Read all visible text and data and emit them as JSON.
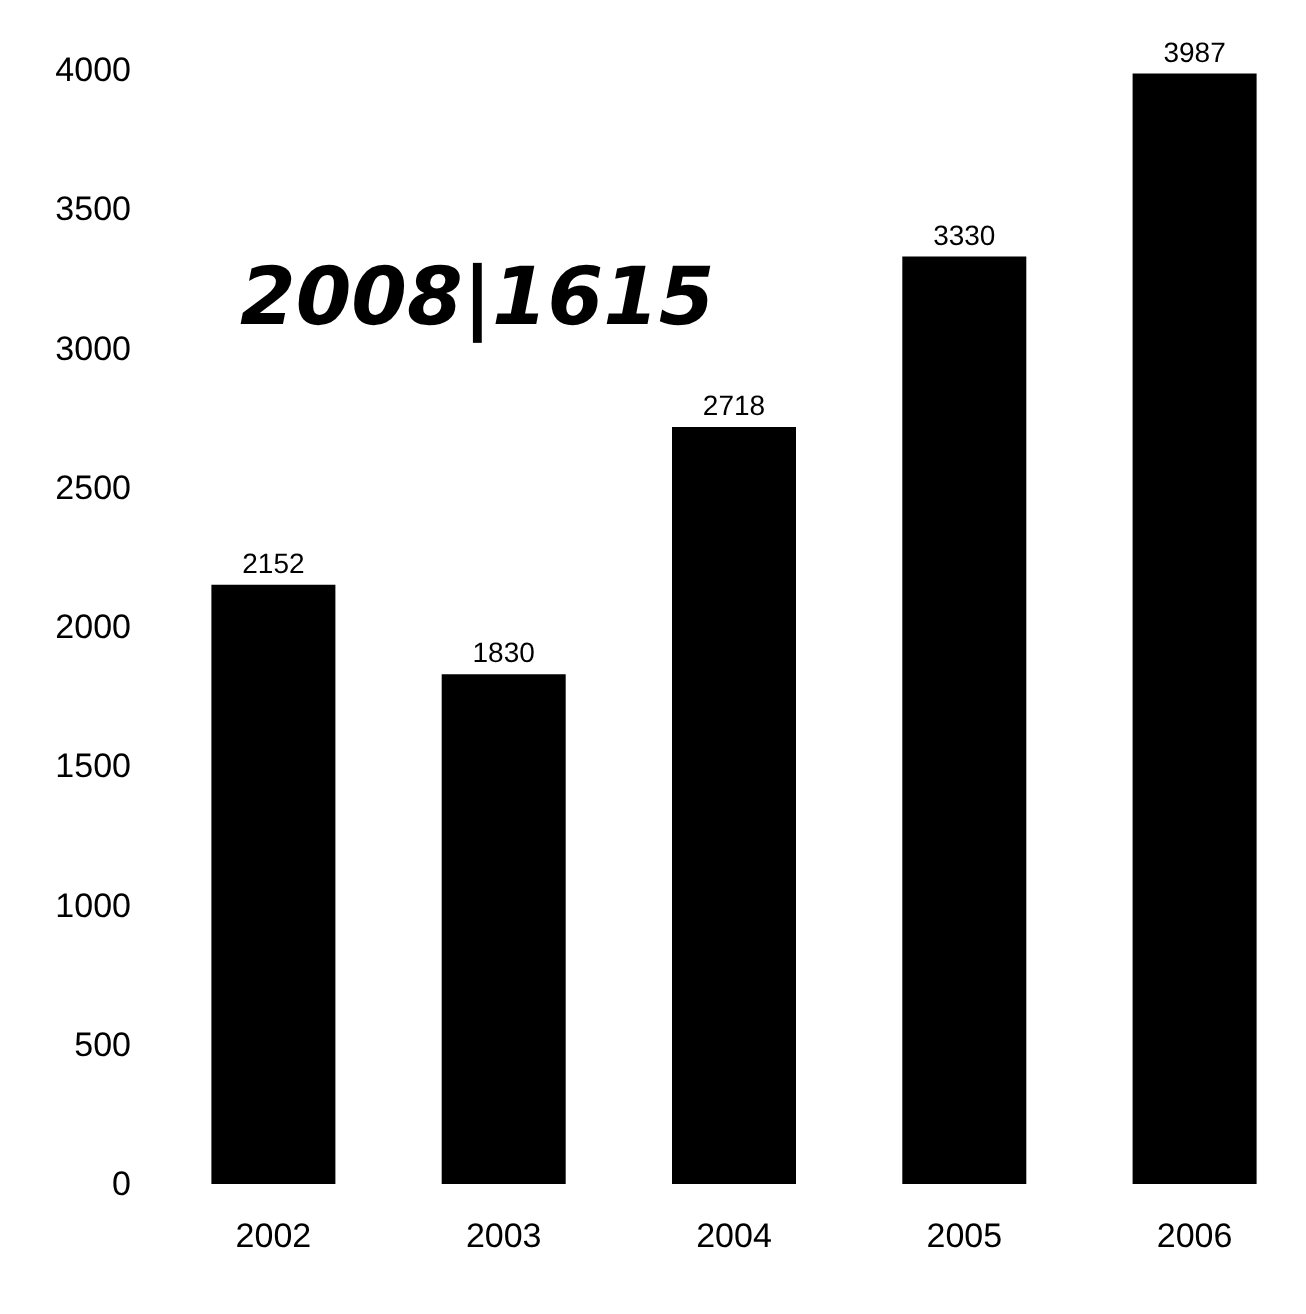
{
  "chart_data": {
    "type": "bar",
    "categories": [
      "2002",
      "2003",
      "2004",
      "2005",
      "2006"
    ],
    "values": [
      2152,
      1830,
      2718,
      3330,
      3987
    ],
    "color": "#000000",
    "ylim": [
      0,
      4000
    ],
    "yticks": [
      0,
      500,
      1000,
      1500,
      2000,
      2500,
      3000,
      3500,
      4000
    ],
    "data_labels": true,
    "grid": false,
    "annotations": [
      "2008|1615"
    ]
  }
}
